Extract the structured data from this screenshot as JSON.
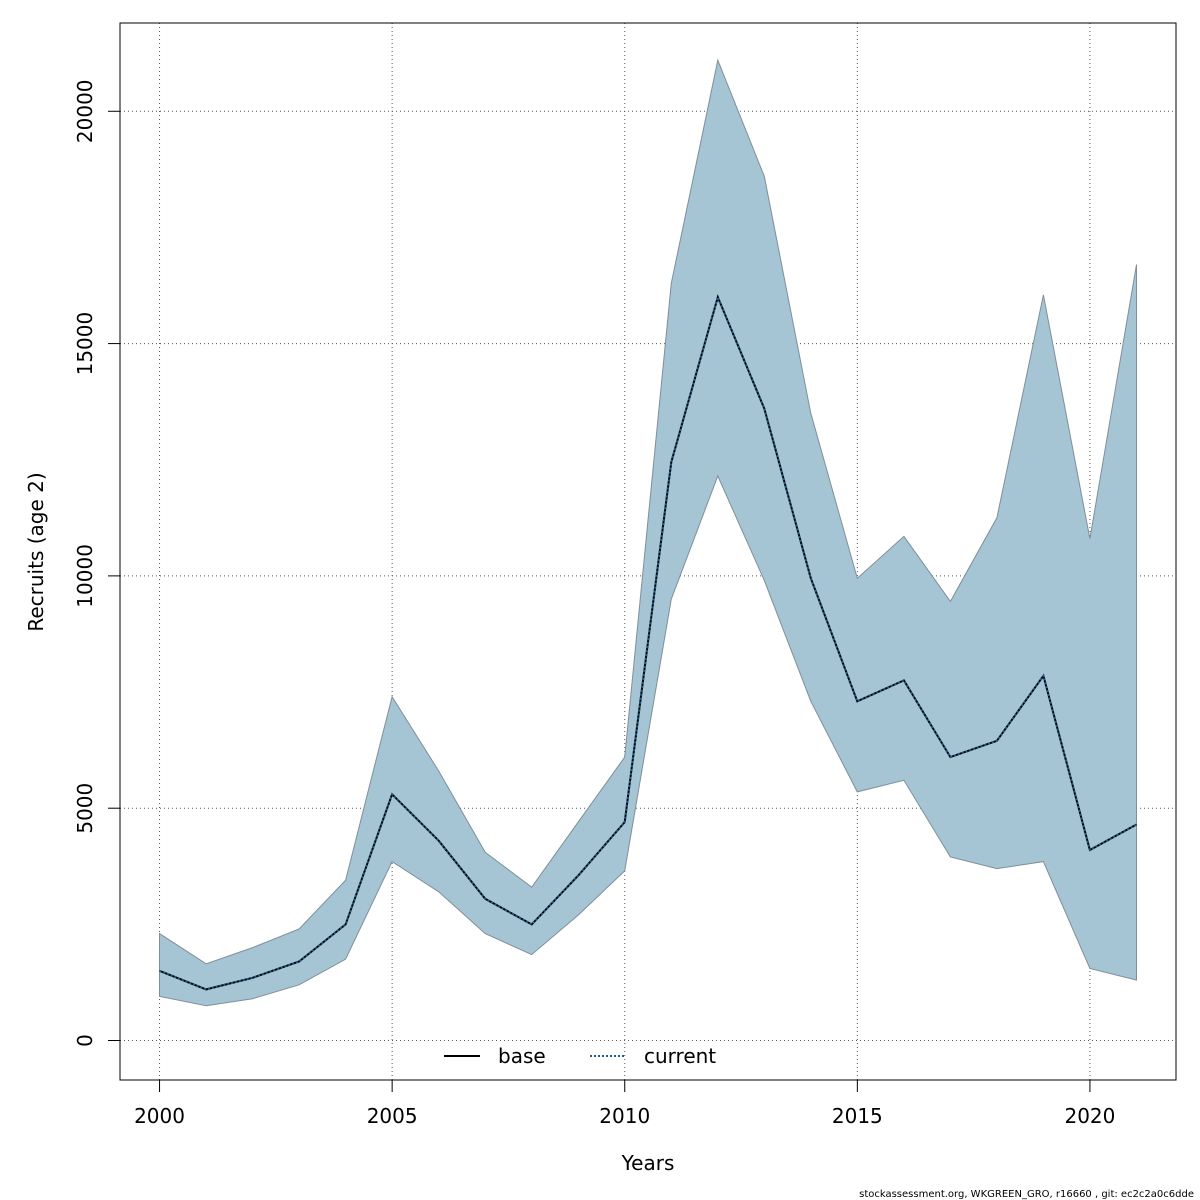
{
  "chart_data": {
    "type": "area",
    "xlabel": "Years",
    "ylabel": "Recruits (age 2)",
    "xlim": [
      1999.15,
      2021.85
    ],
    "ylim": [
      -850,
      21900
    ],
    "x_ticks": [
      "2000",
      "2005",
      "2010",
      "2015",
      "2020"
    ],
    "y_ticks": [
      "0",
      "5000",
      "10000",
      "15000",
      "20000"
    ],
    "grid": true,
    "legend_position": "bottom-center",
    "x": [
      2000,
      2001,
      2002,
      2003,
      2004,
      2005,
      2006,
      2007,
      2008,
      2009,
      2010,
      2011,
      2012,
      2013,
      2014,
      2015,
      2016,
      2017,
      2018,
      2019,
      2020,
      2021
    ],
    "band": {
      "upper": [
        2300,
        1650,
        2000,
        2400,
        3450,
        7400,
        5800,
        4050,
        3300,
        4700,
        6100,
        16300,
        21100,
        18600,
        13500,
        9950,
        10850,
        9450,
        11250,
        16050,
        10800,
        16700
      ],
      "lower": [
        950,
        750,
        900,
        1200,
        1750,
        3850,
        3200,
        2300,
        1850,
        2700,
        3650,
        9500,
        12150,
        9900,
        7300,
        5350,
        5600,
        3950,
        3700,
        3850,
        1550,
        1300
      ],
      "fill_color": "#a5c4d4",
      "stroke_color": "#7f8f99"
    },
    "series": [
      {
        "name": "base",
        "style": "solid",
        "color": "#000000",
        "values": [
          1500,
          1100,
          1350,
          1700,
          2500,
          5300,
          4300,
          3050,
          2500,
          3550,
          4700,
          12450,
          16000,
          13600,
          9950,
          7300,
          7750,
          6100,
          6450,
          7850,
          4100,
          4650
        ]
      },
      {
        "name": "current",
        "style": "dotted",
        "color": "#1c5f8a",
        "values": [
          1500,
          1100,
          1350,
          1700,
          2500,
          5300,
          4300,
          3050,
          2500,
          3550,
          4700,
          12450,
          16000,
          13600,
          9950,
          7300,
          7750,
          6100,
          6450,
          7850,
          4100,
          4650
        ]
      }
    ]
  },
  "footer_text": "stockassessment.org, WKGREEN_GRO, r16660 , git: ec2c2a0c6dde"
}
